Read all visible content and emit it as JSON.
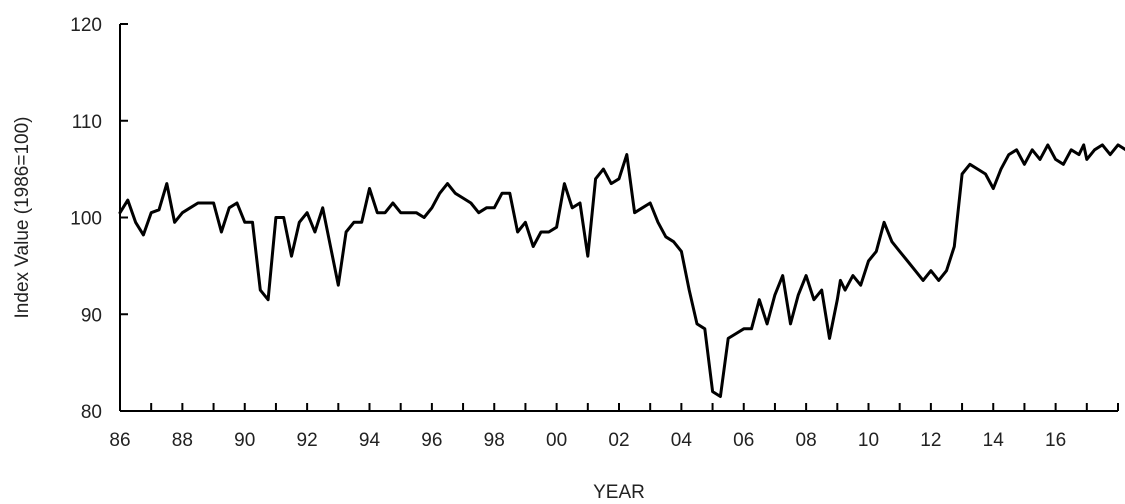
{
  "chart_data": {
    "type": "line",
    "title": "",
    "xlabel": "YEAR",
    "ylabel": "Index Value (1986=100)",
    "xlim": [
      1986,
      2018
    ],
    "ylim": [
      80,
      120
    ],
    "y_ticks": [
      "80",
      "90",
      "100",
      "110",
      "120"
    ],
    "x_tick_values": [
      1986,
      1988,
      1990,
      1992,
      1994,
      1996,
      1998,
      2000,
      2002,
      2004,
      2006,
      2008,
      2010,
      2012,
      2014,
      2016
    ],
    "x_tick_labels": [
      "86",
      "88",
      "90",
      "92",
      "94",
      "96",
      "98",
      "00",
      "02",
      "04",
      "06",
      "08",
      "10",
      "12",
      "14",
      "16"
    ],
    "x_minor_ticks": [
      1987,
      1989,
      1991,
      1993,
      1995,
      1997,
      1999,
      2001,
      2003,
      2005,
      2007,
      2009,
      2011,
      2013,
      2015,
      2017,
      2018
    ],
    "grid": false,
    "line_color": "#000000",
    "series": [
      {
        "x": [
          1986.0,
          1986.25,
          1986.5,
          1986.75,
          1987.0,
          1987.25,
          1987.5,
          1987.75,
          1988.0,
          1988.25,
          1988.5,
          1988.75,
          1989.0,
          1989.25,
          1989.5,
          1989.75,
          1990.0,
          1990.25,
          1990.5,
          1990.75,
          1991.0,
          1991.25,
          1991.5,
          1991.75,
          1992.0,
          1992.25,
          1992.5,
          1992.75,
          1993.0,
          1993.25,
          1993.5,
          1993.75,
          1994.0,
          1994.25,
          1994.5,
          1994.75,
          1995.0,
          1995.25,
          1995.5,
          1995.75,
          1996.0,
          1996.25,
          1996.5,
          1996.75,
          1997.0,
          1997.25,
          1997.5,
          1997.75,
          1998.0,
          1998.25,
          1998.5,
          1998.75,
          1999.0,
          1999.25,
          1999.5,
          1999.75,
          2000.0,
          2000.25,
          2000.5,
          2000.75,
          2001.0,
          2001.25,
          2001.5,
          2001.75,
          2002.0,
          2002.25,
          2002.5,
          2002.75,
          2003.0,
          2003.25,
          2003.5,
          2003.75,
          2004.0,
          2004.25,
          2004.5,
          2004.75,
          2005.0,
          2005.25,
          2005.5,
          2005.75,
          2006.0,
          2006.25,
          2006.5,
          2006.75,
          2007.0,
          2007.25,
          2007.5,
          2007.75,
          2008.0,
          2008.25,
          2008.5,
          2008.75,
          2009.0,
          2009.1,
          2009.25,
          2009.5,
          2009.75,
          2010.0,
          2010.25,
          2010.5,
          2010.75,
          2011.0,
          2011.25,
          2011.5,
          2011.75,
          2012.0,
          2012.25,
          2012.5,
          2012.75,
          2013.0,
          2013.25,
          2013.5,
          2013.75,
          2014.0,
          2014.25,
          2014.5,
          2014.75,
          2015.0,
          2015.25,
          2015.5,
          2015.75,
          2016.0,
          2016.25,
          2016.5,
          2016.75,
          2016.9,
          2017.0,
          2017.25,
          2017.5,
          2017.75,
          2018.0,
          2018.25,
          2018.5
        ],
        "values": [
          100.5,
          101.8,
          99.5,
          98.2,
          100.5,
          100.8,
          103.5,
          99.5,
          100.5,
          101.0,
          101.5,
          101.5,
          101.5,
          98.5,
          101.0,
          101.5,
          99.5,
          99.5,
          92.5,
          91.5,
          100.0,
          100.0,
          96.0,
          99.5,
          100.5,
          98.5,
          101.0,
          97.0,
          93.0,
          98.5,
          99.5,
          99.5,
          103.0,
          100.5,
          100.5,
          101.5,
          100.5,
          100.5,
          100.5,
          100.0,
          101.0,
          102.5,
          103.5,
          102.5,
          102.0,
          101.5,
          100.5,
          101.0,
          101.0,
          102.5,
          102.5,
          98.5,
          99.5,
          97.0,
          98.5,
          98.5,
          99.0,
          103.5,
          101.0,
          101.5,
          96.0,
          104.0,
          105.0,
          103.5,
          104.0,
          106.5,
          100.5,
          101.0,
          101.5,
          99.5,
          98.0,
          97.5,
          96.5,
          92.5,
          89.0,
          88.5,
          82.0,
          81.5,
          87.5,
          88.0,
          88.5,
          88.5,
          91.5,
          89.0,
          92.0,
          94.0,
          89.0,
          92.0,
          94.0,
          91.5,
          92.5,
          87.5,
          91.5,
          93.5,
          92.5,
          94.0,
          93.0,
          95.5,
          96.5,
          99.5,
          97.5,
          96.5,
          95.5,
          94.5,
          93.5,
          94.5,
          93.5,
          94.5,
          97.0,
          104.5,
          105.5,
          105.0,
          104.5,
          103.0,
          105.0,
          106.5,
          107.0,
          105.5,
          107.0,
          106.0,
          107.5,
          106.0,
          105.5,
          107.0,
          106.5,
          107.5,
          106.0,
          107.0,
          107.5,
          106.5,
          107.5,
          107.0,
          107.5
        ]
      }
    ]
  }
}
